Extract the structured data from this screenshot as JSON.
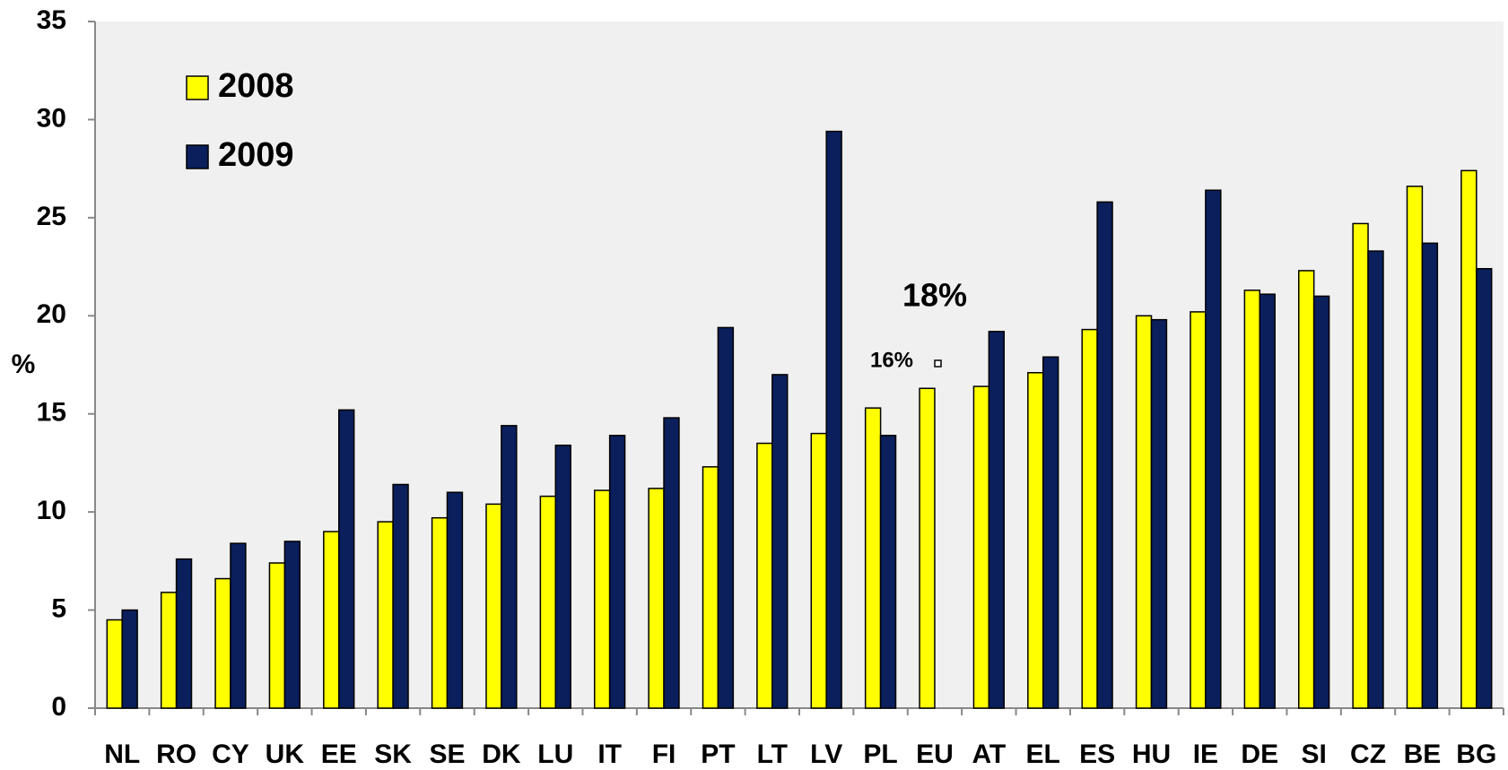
{
  "chart_data": {
    "type": "bar",
    "y_label": "%",
    "categories": [
      "NL",
      "RO",
      "CY",
      "UK",
      "EE",
      "SK",
      "SE",
      "DK",
      "LU",
      "IT",
      "FI",
      "PT",
      "LT",
      "LV",
      "PL",
      "EU",
      "AT",
      "EL",
      "ES",
      "HU",
      "IE",
      "DE",
      "SI",
      "CZ",
      "BE",
      "BG"
    ],
    "series": [
      {
        "name": "2008",
        "color": "#ffff00",
        "values": [
          4.5,
          5.9,
          6.6,
          7.4,
          9.0,
          9.5,
          9.7,
          10.4,
          10.8,
          11.1,
          11.2,
          12.3,
          13.5,
          14.0,
          15.3,
          16.3,
          16.4,
          17.1,
          19.3,
          20.0,
          20.2,
          21.3,
          22.3,
          24.7,
          26.6,
          27.4
        ]
      },
      {
        "name": "2009",
        "color": "#0a1f5c",
        "values": [
          5.0,
          7.6,
          8.4,
          8.5,
          15.2,
          11.4,
          11.0,
          14.4,
          13.4,
          13.9,
          14.8,
          19.4,
          17.0,
          29.4,
          13.9,
          null,
          19.2,
          17.9,
          25.8,
          19.8,
          26.4,
          21.1,
          21.0,
          23.3,
          23.7,
          22.4
        ]
      }
    ],
    "ylim": [
      0,
      35
    ],
    "yticks": [
      0,
      5,
      10,
      15,
      20,
      25,
      30,
      35
    ],
    "grid": false,
    "annotations": [
      "18%",
      "16%"
    ]
  }
}
